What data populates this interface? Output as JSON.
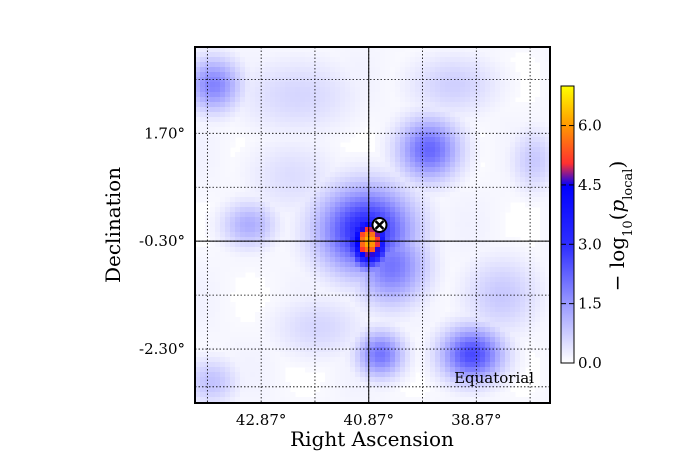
{
  "chart_data": {
    "type": "heatmap",
    "title": "",
    "xlabel": "Right Ascension",
    "ylabel": "Declination",
    "x_ticks": [
      "42.87°",
      "40.87°",
      "38.87°"
    ],
    "x_tick_values": [
      42.87,
      40.87,
      38.87
    ],
    "y_ticks": [
      "1.70°",
      "-0.30°",
      "-2.30°"
    ],
    "y_tick_values": [
      1.7,
      -0.3,
      -2.3
    ],
    "xlim": [
      44.1,
      37.5
    ],
    "ylim": [
      -3.3,
      3.3
    ],
    "x_reversed": true,
    "grid": true,
    "colorbar": {
      "label_prefix": "− log",
      "label_sub": "10",
      "label_arg": "p",
      "label_arg_sub": "local",
      "ticks": [
        "0.0",
        "1.5",
        "3.0",
        "4.5",
        "6.0"
      ],
      "tick_values": [
        0.0,
        1.5,
        3.0,
        4.5,
        6.0
      ],
      "range": [
        0,
        7
      ]
    },
    "annotation": "Equatorial",
    "hotspot": {
      "ra": 40.87,
      "dec": -0.3,
      "value": 6.3
    },
    "marker": {
      "ra": 40.67,
      "dec": 0.0,
      "symbol": "x-circle"
    },
    "blobs": [
      {
        "ra": 40.87,
        "dec": -0.3,
        "peak": 6.3,
        "sx": 0.25,
        "sy": 0.33
      },
      {
        "ra": 40.92,
        "dec": -0.1,
        "peak": 3.2,
        "sx": 0.6,
        "sy": 0.55
      },
      {
        "ra": 40.45,
        "dec": -0.75,
        "peak": 2.0,
        "sx": 0.45,
        "sy": 0.5
      },
      {
        "ra": 39.75,
        "dec": 1.4,
        "peak": 2.2,
        "sx": 0.4,
        "sy": 0.4
      },
      {
        "ra": 43.75,
        "dec": 2.6,
        "peak": 1.8,
        "sx": 0.35,
        "sy": 0.35
      },
      {
        "ra": 38.95,
        "dec": -2.4,
        "peak": 2.6,
        "sx": 0.4,
        "sy": 0.35
      },
      {
        "ra": 40.65,
        "dec": -2.4,
        "peak": 2.0,
        "sx": 0.3,
        "sy": 0.3
      },
      {
        "ra": 43.1,
        "dec": 0.0,
        "peak": 1.2,
        "sx": 0.35,
        "sy": 0.3
      },
      {
        "ra": 38.4,
        "dec": -1.3,
        "peak": 0.8,
        "sx": 0.5,
        "sy": 0.5
      },
      {
        "ra": 42.2,
        "dec": 2.4,
        "peak": 0.6,
        "sx": 0.8,
        "sy": 0.5
      },
      {
        "ra": 39.3,
        "dec": 2.6,
        "peak": 0.7,
        "sx": 0.6,
        "sy": 0.4
      },
      {
        "ra": 43.8,
        "dec": -2.9,
        "peak": 0.9,
        "sx": 0.35,
        "sy": 0.3
      },
      {
        "ra": 41.8,
        "dec": -1.9,
        "peak": 0.6,
        "sx": 0.6,
        "sy": 0.4
      },
      {
        "ra": 37.8,
        "dec": 1.2,
        "peak": 0.8,
        "sx": 0.3,
        "sy": 0.4
      },
      {
        "ra": 42.3,
        "dec": 0.9,
        "peak": 0.5,
        "sx": 0.6,
        "sy": 0.5
      }
    ]
  }
}
